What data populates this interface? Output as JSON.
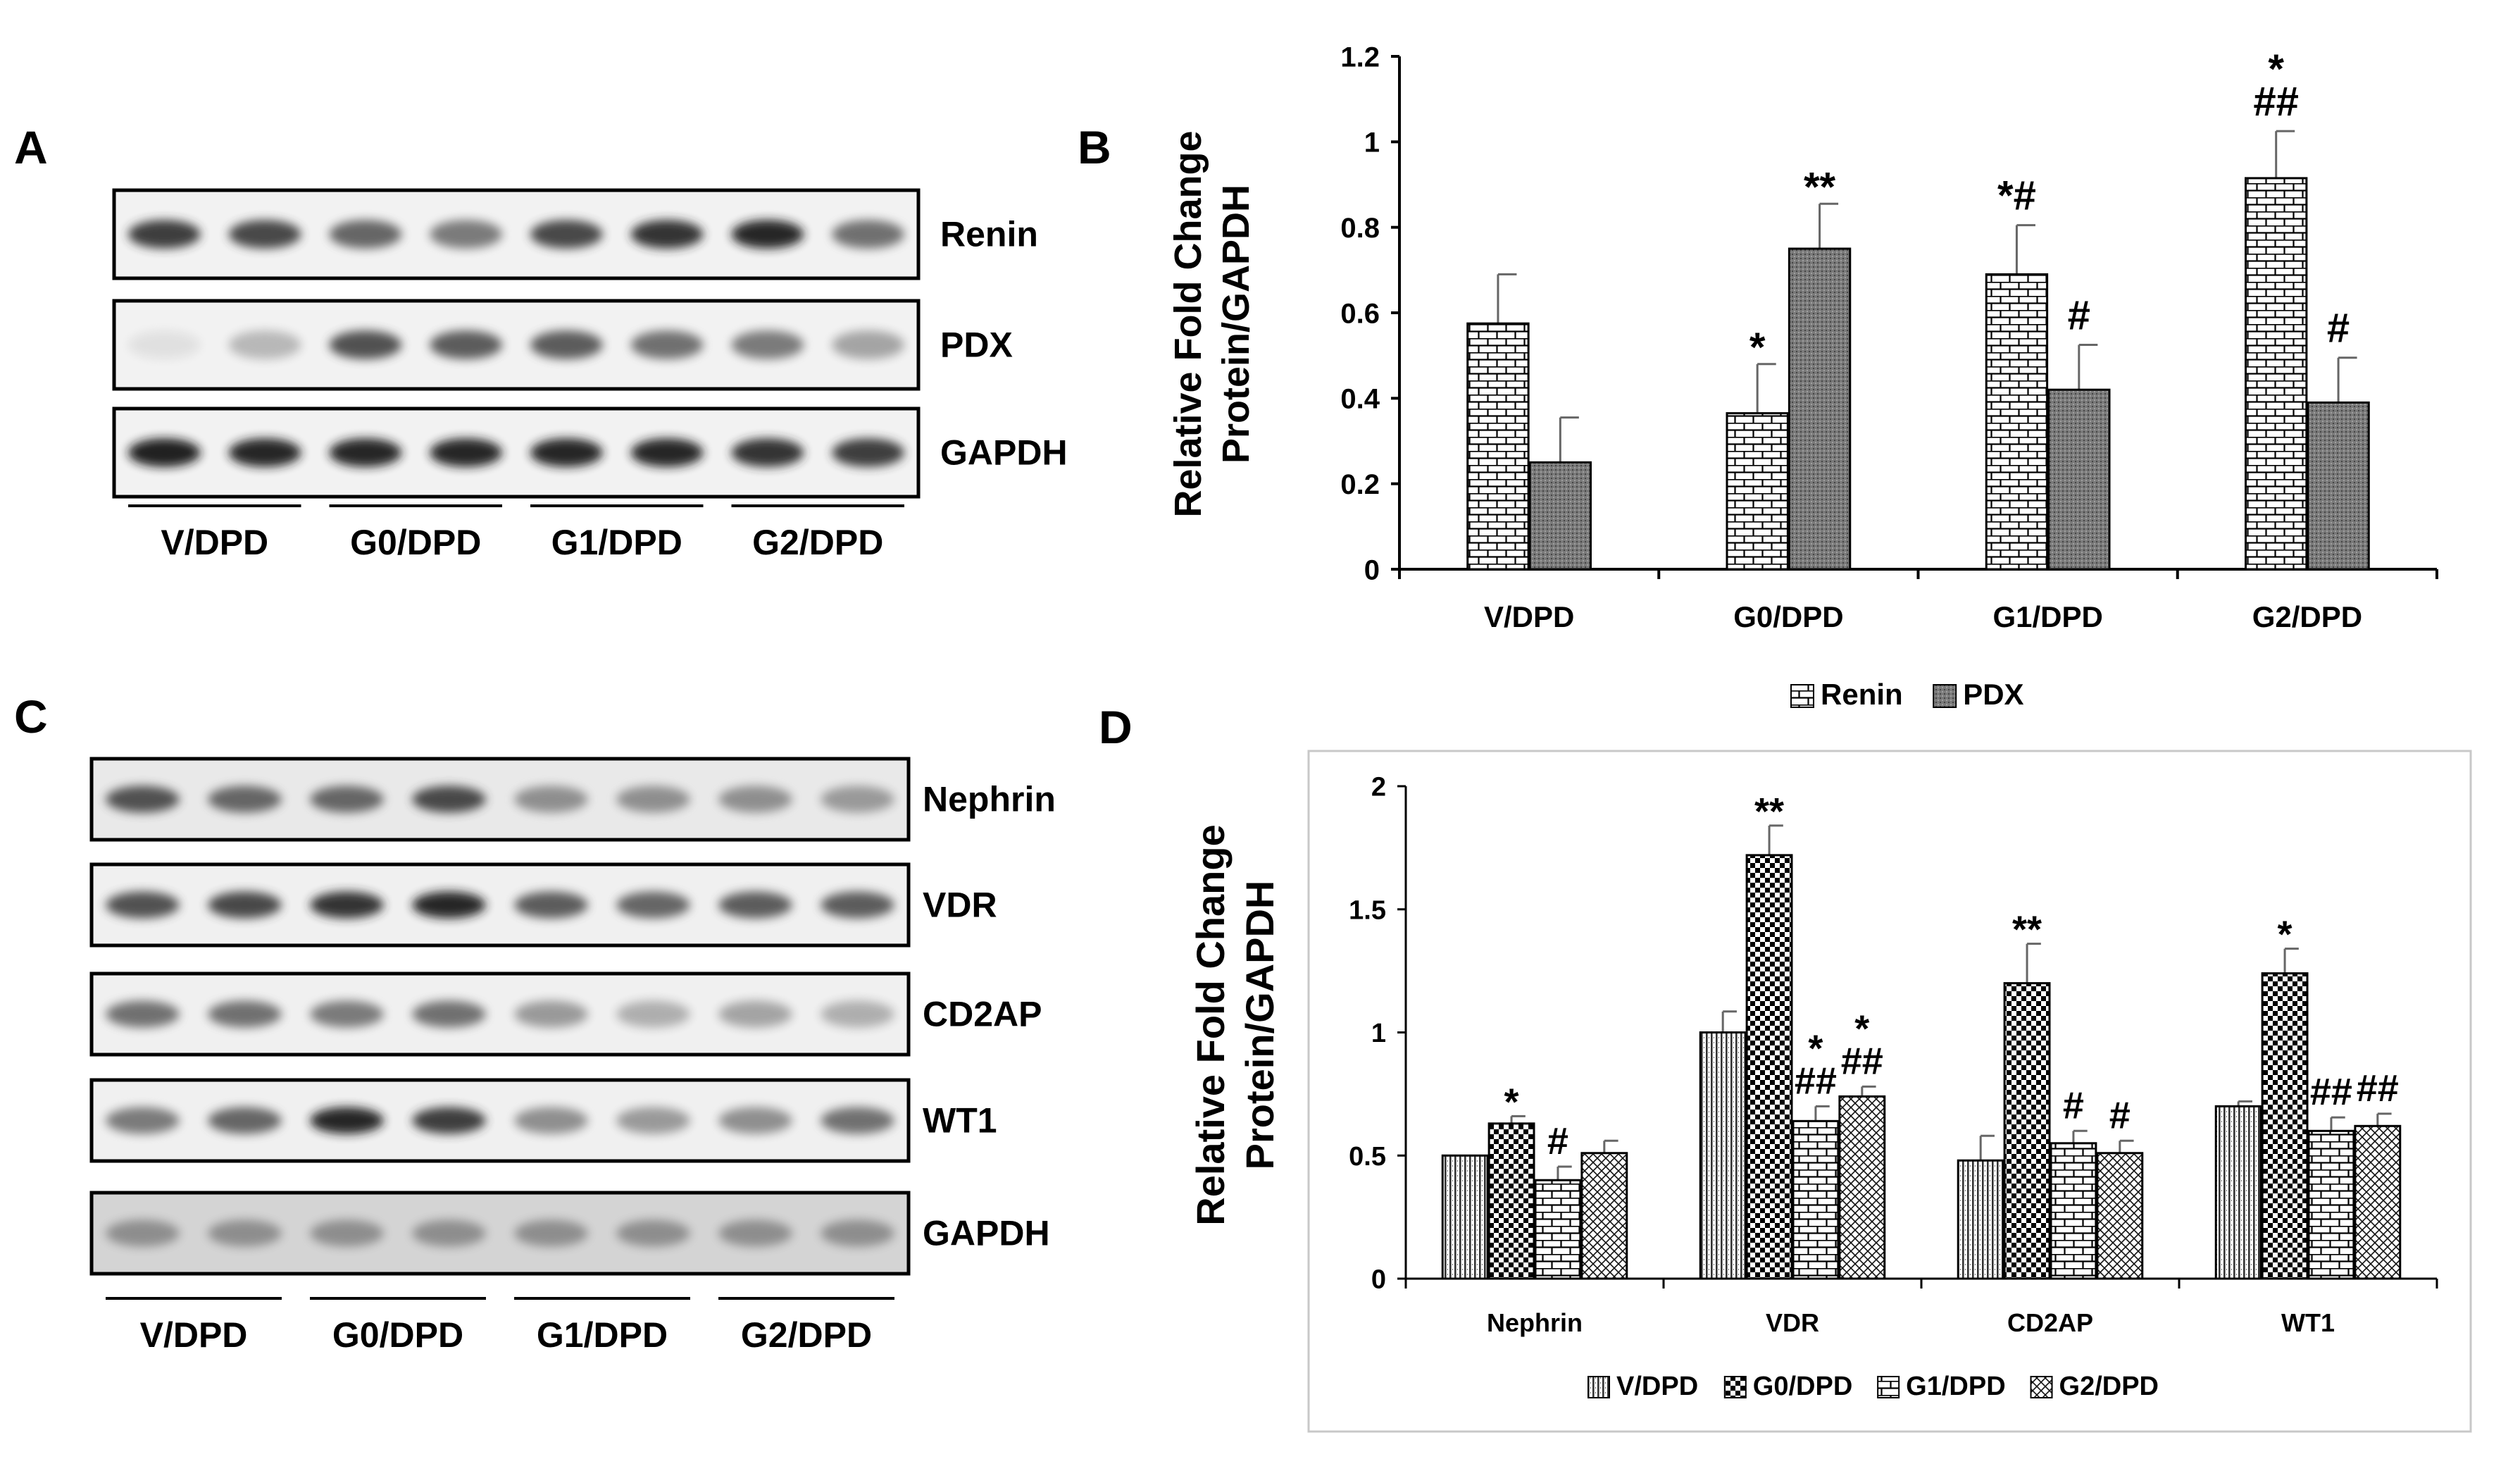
{
  "panel_labels": {
    "a": "A",
    "b": "B",
    "c": "C",
    "d": "D"
  },
  "blot_a": {
    "bands": [
      "Renin",
      "PDX",
      "GAPDH"
    ],
    "groups": [
      "V/DPD",
      "G0/DPD",
      "G1/DPD",
      "G2/DPD"
    ],
    "intensity": {
      "Renin": [
        0.85,
        0.8,
        0.65,
        0.55,
        0.8,
        0.9,
        0.95,
        0.6
      ],
      "PDX": [
        0.05,
        0.25,
        0.75,
        0.7,
        0.7,
        0.6,
        0.55,
        0.35
      ],
      "GAPDH": [
        1.0,
        0.95,
        0.95,
        0.95,
        0.95,
        0.95,
        0.9,
        0.85
      ]
    }
  },
  "blot_c": {
    "bands": [
      "Nephrin",
      "VDR",
      "CD2AP",
      "WT1",
      "GAPDH"
    ],
    "groups": [
      "V/DPD",
      "G0/DPD",
      "G1/DPD",
      "G2/DPD"
    ],
    "intensity": {
      "Nephrin": [
        0.75,
        0.65,
        0.65,
        0.8,
        0.45,
        0.45,
        0.45,
        0.4
      ],
      "VDR": [
        0.75,
        0.8,
        0.9,
        0.95,
        0.7,
        0.65,
        0.7,
        0.7
      ],
      "CD2AP": [
        0.6,
        0.6,
        0.55,
        0.6,
        0.4,
        0.3,
        0.35,
        0.3
      ],
      "WT1": [
        0.55,
        0.65,
        0.95,
        0.85,
        0.45,
        0.4,
        0.45,
        0.6
      ],
      "GAPDH": [
        0.45,
        0.45,
        0.45,
        0.45,
        0.45,
        0.45,
        0.45,
        0.45
      ]
    }
  },
  "chart_data": [
    {
      "type": "bar",
      "panel": "B",
      "ylabel": [
        "Relative Fold Change",
        "Protein/GAPDH"
      ],
      "categories": [
        "V/DPD",
        "G0/DPD",
        "G1/DPD",
        "G2/DPD"
      ],
      "ylim": [
        0,
        1.2
      ],
      "yticks": [
        "0",
        "0.2",
        "0.4",
        "0.6",
        "0.8",
        "1",
        "1.2"
      ],
      "series": [
        {
          "name": "Renin",
          "pattern": "bricks",
          "values": [
            0.575,
            0.365,
            0.69,
            0.915
          ],
          "errors": [
            0.115,
            0.115,
            0.115,
            0.11
          ]
        },
        {
          "name": "PDX",
          "pattern": "dark-dots",
          "values": [
            0.25,
            0.75,
            0.42,
            0.39
          ],
          "errors": [
            0.105,
            0.105,
            0.105,
            0.105
          ]
        }
      ],
      "annotations": [
        {
          "category": 1,
          "series": 0,
          "text": "*"
        },
        {
          "category": 1,
          "series": 1,
          "text": "**"
        },
        {
          "category": 2,
          "series": 0,
          "text": "*#"
        },
        {
          "category": 2,
          "series": 1,
          "text": "#"
        },
        {
          "category": 3,
          "series": 0,
          "text": "##"
        },
        {
          "category": 3,
          "series": 0,
          "text": "*"
        },
        {
          "category": 3,
          "series": 1,
          "text": "#"
        }
      ],
      "legend_position": "bottom"
    },
    {
      "type": "bar",
      "panel": "D",
      "ylabel": [
        "Relative Fold Change",
        "Protein/GAPDH"
      ],
      "categories": [
        "Nephrin",
        "VDR",
        "CD2AP",
        "WT1"
      ],
      "ylim": [
        0,
        2
      ],
      "yticks": [
        "0",
        "0.5",
        "1",
        "1.5",
        "2"
      ],
      "series": [
        {
          "name": "V/DPD",
          "pattern": "vertical-lines",
          "values": [
            0.5,
            1.0,
            0.48,
            0.7
          ],
          "errors": [
            0,
            0.085,
            0.1,
            0.02
          ]
        },
        {
          "name": "G0/DPD",
          "pattern": "checker",
          "values": [
            0.63,
            1.72,
            1.2,
            1.24
          ],
          "errors": [
            0.03,
            0.12,
            0.16,
            0.1
          ]
        },
        {
          "name": "G1/DPD",
          "pattern": "bricks",
          "values": [
            0.4,
            0.64,
            0.55,
            0.6
          ],
          "errors": [
            0.055,
            0.06,
            0.05,
            0.055
          ]
        },
        {
          "name": "G2/DPD",
          "pattern": "crosshatch",
          "values": [
            0.51,
            0.74,
            0.51,
            0.62
          ],
          "errors": [
            0.05,
            0.04,
            0.05,
            0.05
          ]
        }
      ],
      "annotations": [
        {
          "category": 0,
          "series": 1,
          "text": "*"
        },
        {
          "category": 0,
          "series": 2,
          "text": "#"
        },
        {
          "category": 1,
          "series": 1,
          "text": "**"
        },
        {
          "category": 1,
          "series": 2,
          "text": "##"
        },
        {
          "category": 1,
          "series": 2,
          "text": "*"
        },
        {
          "category": 1,
          "series": 3,
          "text": "##"
        },
        {
          "category": 1,
          "series": 3,
          "text": "*"
        },
        {
          "category": 2,
          "series": 1,
          "text": "**"
        },
        {
          "category": 2,
          "series": 2,
          "text": "#"
        },
        {
          "category": 2,
          "series": 3,
          "text": "#"
        },
        {
          "category": 3,
          "series": 1,
          "text": "*"
        },
        {
          "category": 3,
          "series": 2,
          "text": "##"
        },
        {
          "category": 3,
          "series": 3,
          "text": "##"
        }
      ],
      "legend_position": "bottom"
    }
  ]
}
